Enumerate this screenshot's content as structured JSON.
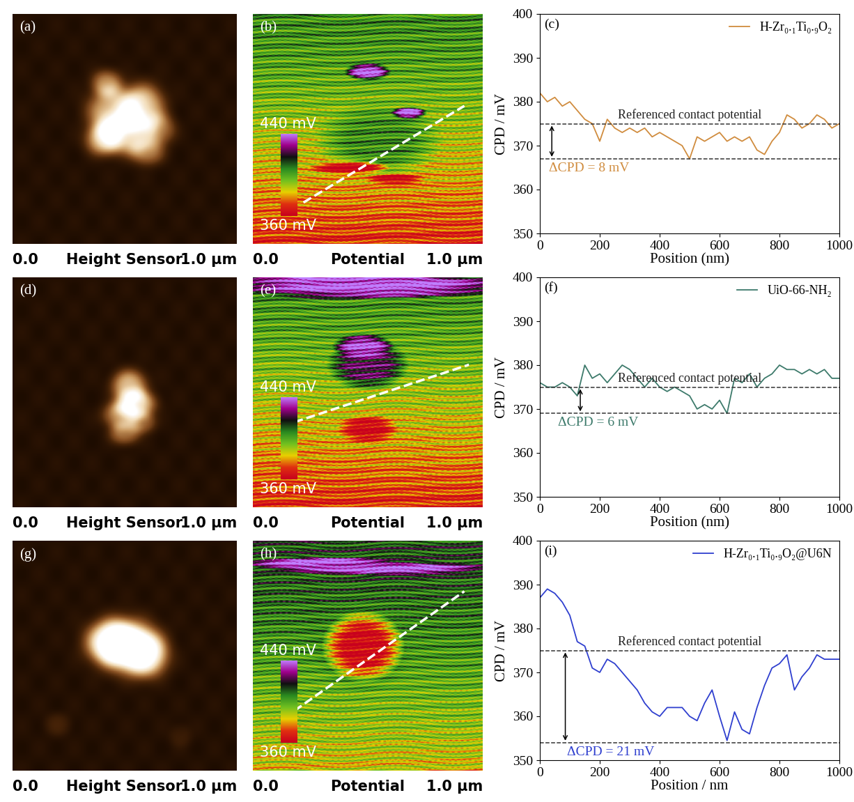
{
  "chart_data": [
    {
      "type": "line",
      "panel": "(c)",
      "xlabel": "Position (nm)",
      "ylabel": "CPD / mV",
      "x": [
        0,
        25,
        50,
        75,
        100,
        125,
        150,
        175,
        200,
        225,
        250,
        275,
        300,
        325,
        350,
        375,
        400,
        425,
        450,
        475,
        500,
        525,
        550,
        575,
        600,
        625,
        650,
        675,
        700,
        725,
        750,
        775,
        800,
        825,
        850,
        875,
        900,
        925,
        950,
        975,
        1000
      ],
      "series": [
        {
          "name": "H-Zr₀.₁Ti₀.₉O₂",
          "color": "#d08c3e",
          "values": [
            382,
            380,
            381,
            379,
            380,
            378,
            376,
            375,
            371,
            376,
            374,
            373,
            374,
            373,
            374,
            372,
            373,
            372,
            371,
            370,
            367,
            372,
            371,
            372,
            373,
            371,
            372,
            371,
            372,
            369,
            368,
            371,
            373,
            377,
            376,
            374,
            375,
            377,
            376,
            374,
            375
          ]
        }
      ],
      "xlim": [
        0,
        1000
      ],
      "ylim": [
        350,
        400
      ],
      "xticks": [
        0,
        200,
        400,
        600,
        800,
        1000
      ],
      "yticks": [
        350,
        360,
        370,
        380,
        390,
        400
      ],
      "reference_lines": [
        375,
        367
      ],
      "reference_label": "Referenced contact potential",
      "delta_label": "ΔCPD = 8 mV",
      "legend": "upper right"
    },
    {
      "type": "line",
      "panel": "(f)",
      "xlabel": "Position (nm)",
      "ylabel": "CPD / mV",
      "x": [
        0,
        25,
        50,
        75,
        100,
        125,
        150,
        175,
        200,
        225,
        250,
        275,
        300,
        325,
        350,
        375,
        400,
        425,
        450,
        475,
        500,
        525,
        550,
        575,
        600,
        625,
        650,
        675,
        700,
        725,
        750,
        775,
        800,
        825,
        850,
        875,
        900,
        925,
        950,
        975,
        1000
      ],
      "series": [
        {
          "name": "UiO-66-NH₂",
          "color": "#3d7a6b",
          "values": [
            376,
            375,
            375,
            376,
            375,
            373,
            380,
            377,
            378,
            376,
            378,
            380,
            379,
            377,
            375,
            377,
            375,
            374,
            375,
            374,
            373,
            370,
            371,
            370,
            372,
            369,
            377,
            376,
            378,
            375,
            377,
            378,
            380,
            379,
            379,
            378,
            379,
            378,
            379,
            377,
            377
          ]
        }
      ],
      "xlim": [
        0,
        1000
      ],
      "ylim": [
        350,
        400
      ],
      "xticks": [
        0,
        200,
        400,
        600,
        800,
        1000
      ],
      "yticks": [
        350,
        360,
        370,
        380,
        390,
        400
      ],
      "reference_lines": [
        375,
        369
      ],
      "reference_label": "Referenced contact potential",
      "delta_label": "ΔCPD = 6 mV",
      "legend": "upper right"
    },
    {
      "type": "line",
      "panel": "(i)",
      "xlabel": "Position / nm",
      "ylabel": "CPD / mV",
      "x": [
        0,
        25,
        50,
        75,
        100,
        125,
        150,
        175,
        200,
        225,
        250,
        275,
        300,
        325,
        350,
        375,
        400,
        425,
        450,
        475,
        500,
        525,
        550,
        575,
        600,
        625,
        650,
        675,
        700,
        725,
        750,
        775,
        800,
        825,
        850,
        875,
        900,
        925,
        950,
        975,
        1000
      ],
      "series": [
        {
          "name": "H-Zr₀.₁Ti₀.₉O₂@U6N",
          "color": "#2f3fcf",
          "values": [
            387,
            389,
            388,
            386,
            383,
            377,
            376,
            371,
            370,
            373,
            372,
            370,
            368,
            366,
            363,
            361,
            360,
            362,
            362,
            362,
            360,
            359,
            363,
            366,
            360,
            354.5,
            361,
            357,
            356,
            362,
            367,
            371,
            372,
            374,
            366,
            369,
            371,
            374,
            373,
            373,
            373
          ]
        }
      ],
      "xlim": [
        0,
        1000
      ],
      "ylim": [
        350,
        400
      ],
      "xticks": [
        0,
        200,
        400,
        600,
        800,
        1000
      ],
      "yticks": [
        350,
        360,
        370,
        380,
        390,
        400
      ],
      "reference_lines": [
        375,
        354
      ],
      "reference_label": "Referenced contact potential",
      "delta_label": "ΔCPD = 21 mV",
      "legend": "upper right"
    }
  ],
  "images": [
    {
      "label": "(a)",
      "type": "height",
      "caption": "Height Sensor",
      "scale": [
        {
          "value": 0,
          "label": "0.0"
        },
        {
          "value": 1,
          "label": "1.0 µm"
        }
      ]
    },
    {
      "label": "(b)",
      "type": "potential",
      "caption": "Potential",
      "scale": [
        {
          "value": 0,
          "label": "0.0"
        },
        {
          "value": 1,
          "label": "1.0 µm"
        }
      ],
      "colorbar": {
        "range": [
          360,
          440
        ],
        "ticks": [
          {
            "value": 360,
            "label": "360 mV"
          },
          {
            "value": 440,
            "label": "440 mV"
          }
        ]
      }
    },
    {
      "label": "(d)",
      "type": "height",
      "caption": "Height Sensor",
      "scale": [
        {
          "value": 0,
          "label": "0.0"
        },
        {
          "value": 1,
          "label": "1.0 µm"
        }
      ]
    },
    {
      "label": "(e)",
      "type": "potential",
      "caption": "Potential",
      "scale": [
        {
          "value": 0,
          "label": "0.0"
        },
        {
          "value": 1,
          "label": "1.0 µm"
        }
      ],
      "colorbar": {
        "range": [
          360,
          440
        ],
        "ticks": [
          {
            "value": 360,
            "label": "360 mV"
          },
          {
            "value": 440,
            "label": "440 mV"
          }
        ]
      }
    },
    {
      "label": "(g)",
      "type": "height",
      "caption": "Height Sensor",
      "scale": [
        {
          "value": 0,
          "label": "0.0"
        },
        {
          "value": 1,
          "label": "1.0 µm"
        }
      ]
    },
    {
      "label": "(h)",
      "type": "potential",
      "caption": "Potential",
      "scale": [
        {
          "value": 0,
          "label": "0.0"
        },
        {
          "value": 1,
          "label": "1.0 µm"
        }
      ],
      "colorbar": {
        "range": [
          360,
          440
        ],
        "ticks": [
          {
            "value": 360,
            "label": "360 mV"
          },
          {
            "value": 440,
            "label": "440 mV"
          }
        ]
      }
    }
  ]
}
